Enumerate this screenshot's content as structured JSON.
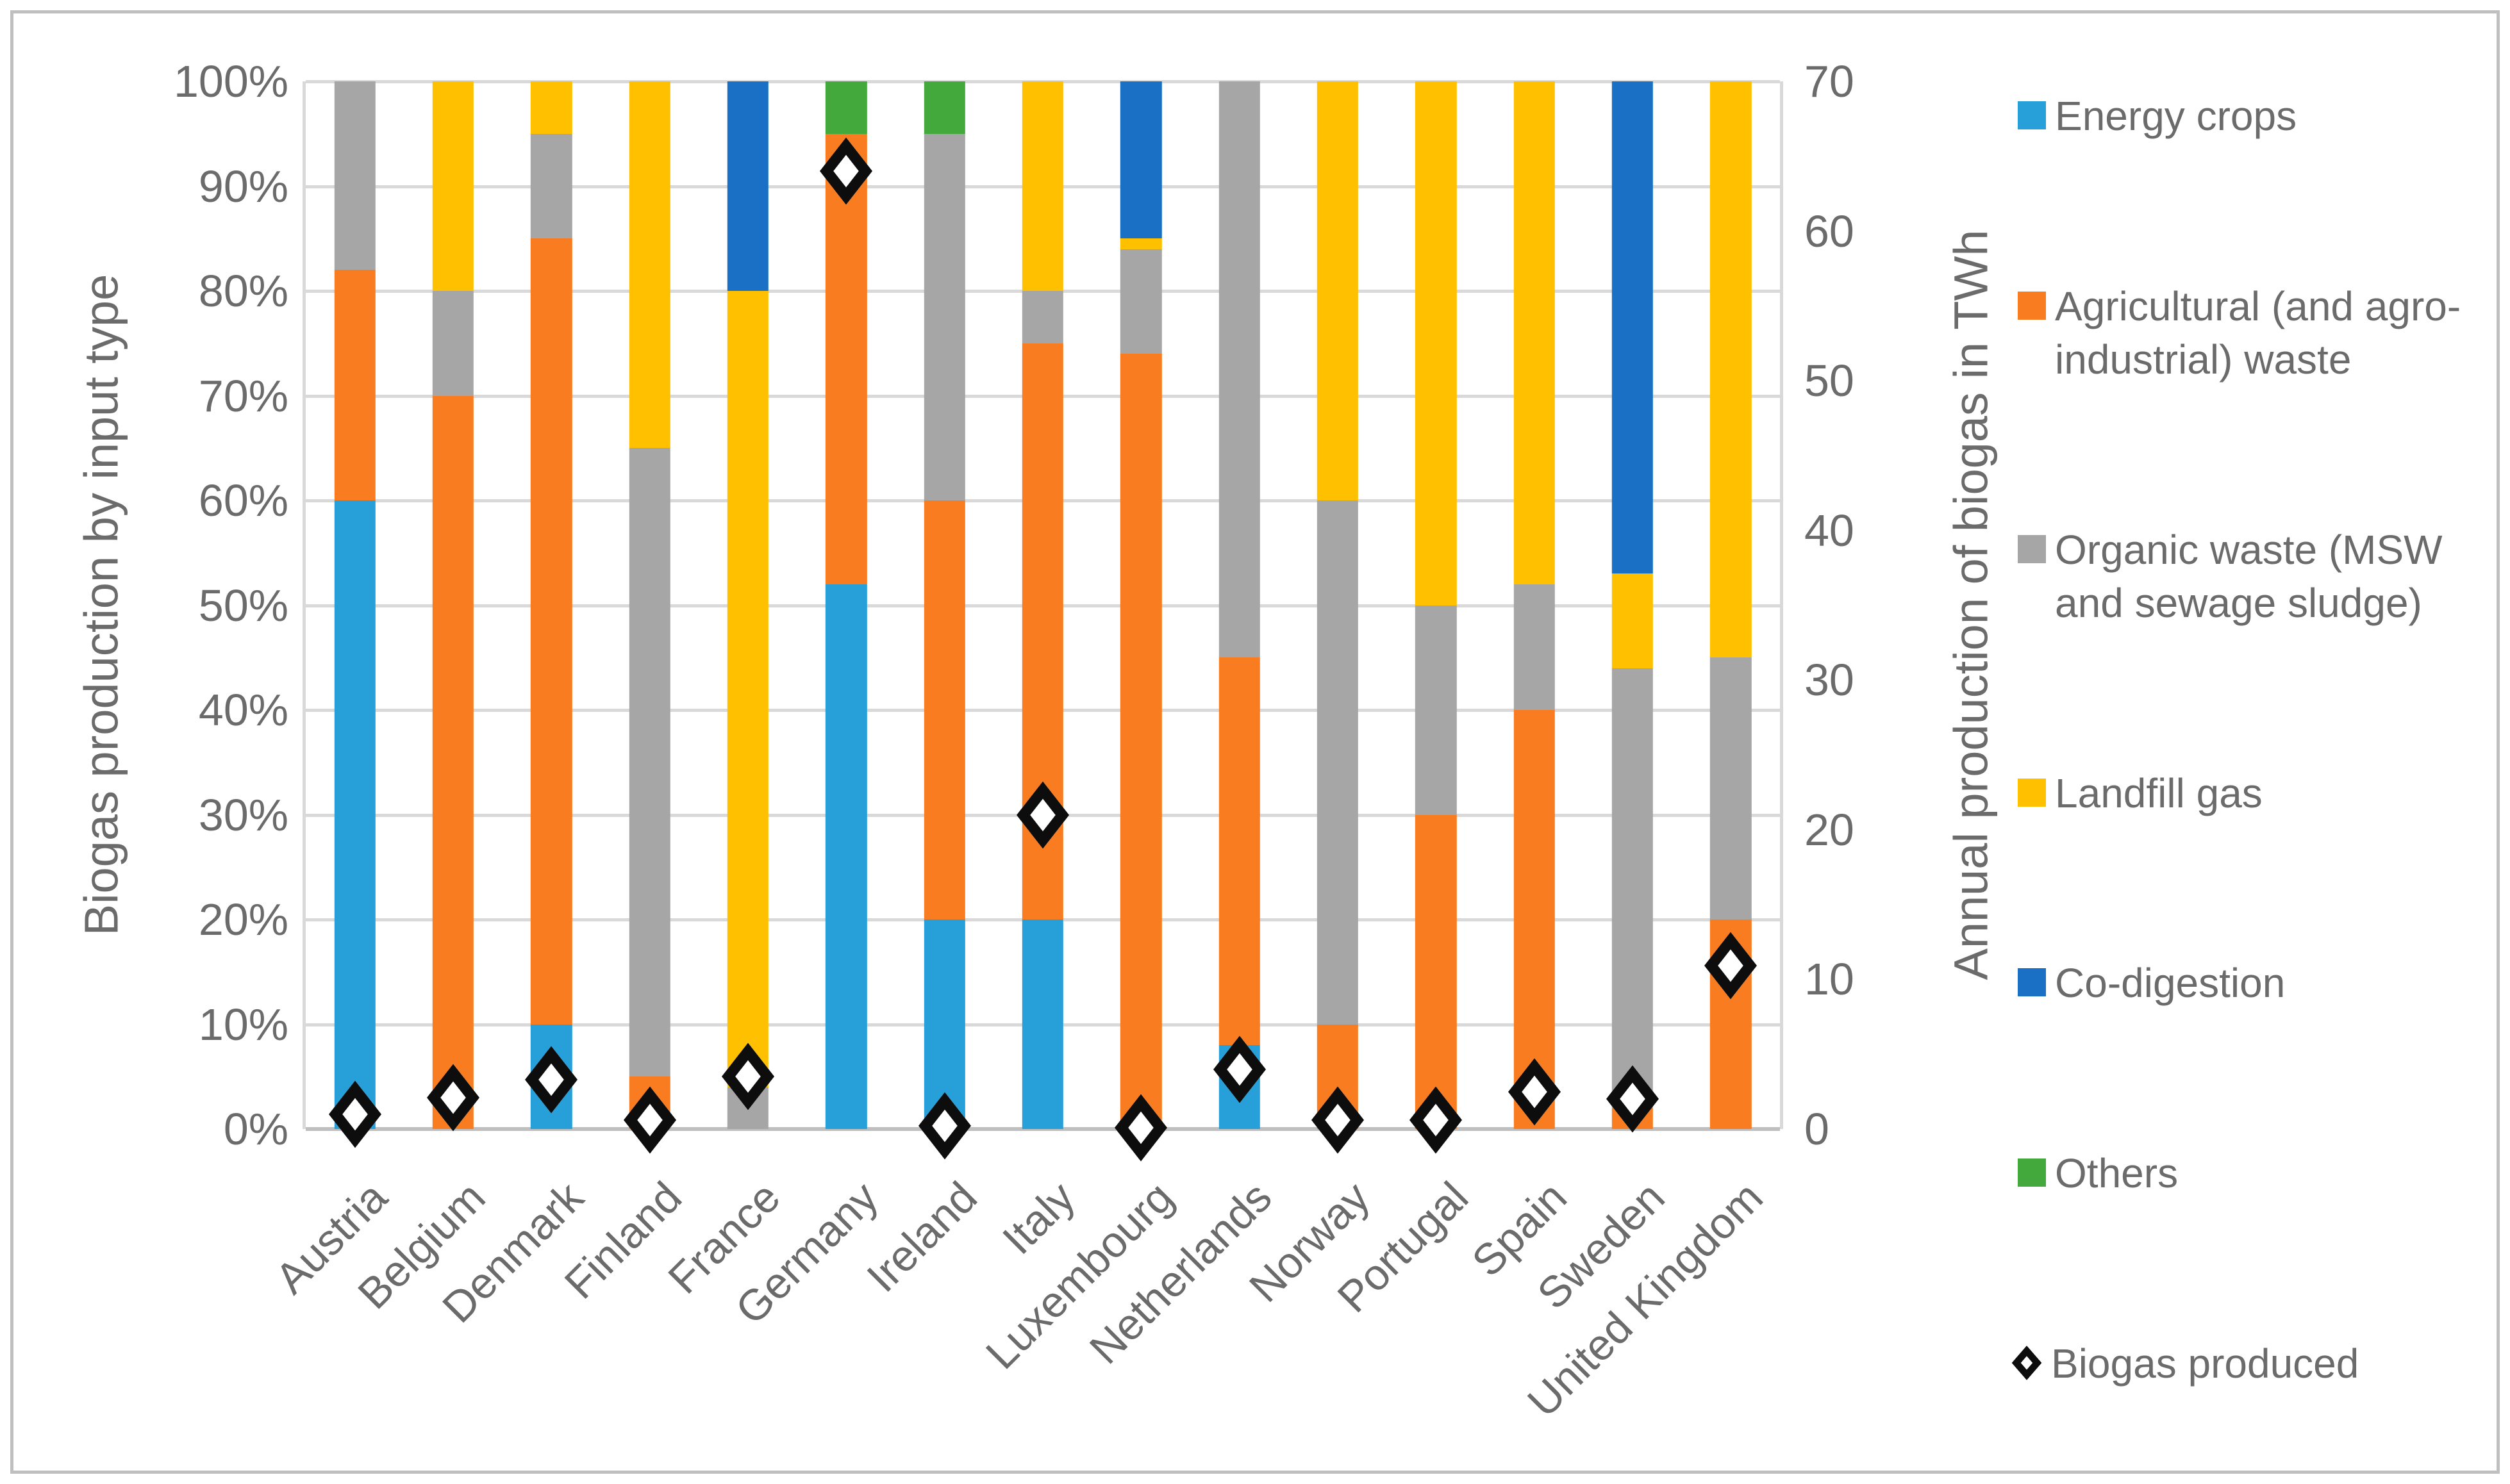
{
  "figure": {
    "left_axis_title": "Biogas production by input type",
    "right_axis_title": "Annual production of biogas in TWh"
  },
  "chart_data": {
    "type": "bar",
    "variant": "100pct-stacked-columns-with-secondary-axis-scatter",
    "title": "",
    "categories": [
      "Austria",
      "Belgium",
      "Denmark",
      "Finland",
      "France",
      "Germany",
      "Ireland",
      "Italy",
      "Luxembourg",
      "Netherlands",
      "Norway",
      "Portugal",
      "Spain",
      "Sweden",
      "United Kingdom"
    ],
    "series": [
      {
        "name": "Energy crops",
        "color": "#27A0DA",
        "values": [
          60,
          0,
          10,
          0,
          0,
          52,
          20,
          20,
          0,
          8,
          0,
          0,
          0,
          0,
          0
        ]
      },
      {
        "name": "Agricultural (and agro-industrial) waste",
        "color": "#F97C20",
        "values": [
          22,
          70,
          75,
          5,
          0,
          43,
          40,
          55,
          74,
          37,
          10,
          30,
          40,
          2,
          20
        ]
      },
      {
        "name": "Organic waste (MSW and sewage sludge)",
        "color": "#A6A6A6",
        "values": [
          18,
          10,
          10,
          60,
          4,
          0,
          35,
          5,
          10,
          55,
          50,
          20,
          12,
          42,
          25
        ]
      },
      {
        "name": "Landfill gas",
        "color": "#FFC000",
        "values": [
          0,
          20,
          5,
          35,
          76,
          0,
          0,
          20,
          1,
          0,
          40,
          50,
          48,
          9,
          55
        ]
      },
      {
        "name": "Co-digestion",
        "color": "#1A70C5",
        "values": [
          0,
          0,
          0,
          0,
          20,
          0,
          0,
          0,
          15,
          0,
          0,
          0,
          0,
          47,
          0
        ]
      },
      {
        "name": "Others",
        "color": "#44A93C",
        "values": [
          0,
          0,
          0,
          0,
          0,
          5,
          5,
          0,
          0,
          0,
          0,
          0,
          0,
          0,
          0
        ]
      }
    ],
    "scatter_series": {
      "name": "Biogas produced",
      "marker": "diamond",
      "color": "#0D0D0D",
      "axis": "right",
      "values_twh": [
        1,
        2.1,
        3.3,
        0.6,
        3.5,
        64,
        0.2,
        21,
        0.1,
        4,
        0.6,
        0.6,
        2.5,
        2,
        10.9
      ]
    },
    "left_axis": {
      "label": "Biogas production by input type",
      "min": 0,
      "max": 100,
      "unit": "%",
      "ticks": [
        "0%",
        "10%",
        "20%",
        "30%",
        "40%",
        "50%",
        "60%",
        "70%",
        "80%",
        "90%",
        "100%"
      ]
    },
    "right_axis": {
      "label": "Annual production of biogas in TWh",
      "min": 0,
      "max": 70,
      "unit": "TWh",
      "ticks": [
        "0",
        "10",
        "20",
        "30",
        "40",
        "50",
        "60",
        "70"
      ]
    },
    "grid": "horizontal",
    "legend_position": "right"
  },
  "legend": {
    "items": [
      {
        "label": "Energy crops",
        "marker": "square",
        "color": "#27A0DA"
      },
      {
        "label": "Agricultural (and agro-industrial) waste",
        "marker": "square",
        "color": "#F97C20"
      },
      {
        "label": "Organic waste (MSW and sewage sludge)",
        "marker": "square",
        "color": "#A6A6A6"
      },
      {
        "label": "Landfill gas",
        "marker": "square",
        "color": "#FFC000"
      },
      {
        "label": "Co-digestion",
        "marker": "square",
        "color": "#1A70C5"
      },
      {
        "label": "Others",
        "marker": "square",
        "color": "#44A93C"
      },
      {
        "label": "Biogas produced",
        "marker": "diamond",
        "color": "#0D0D0D"
      }
    ]
  },
  "colors": {
    "gridline": "#D9D9D9",
    "axis_line": "#BFBFBF",
    "text": "#6B6B6B",
    "frame": "#BFBFBF",
    "background": "#FFFFFF"
  }
}
